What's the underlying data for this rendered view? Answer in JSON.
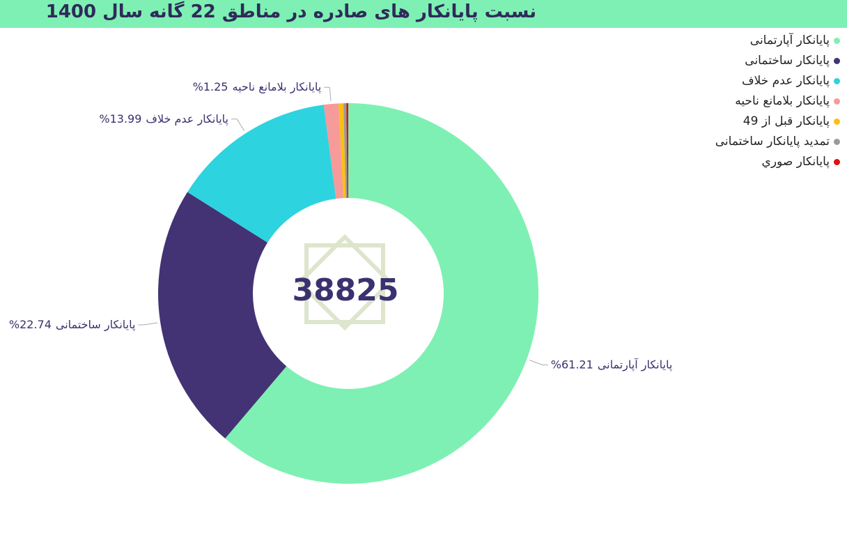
{
  "chart_data": {
    "type": "donut",
    "title": "نسبت پایانکار های صادره در مناطق 22 گانه سال 1400",
    "center_label": 38825,
    "categories": [
      "پایانکار آپارتمانی",
      "پایانکار ساختمانی",
      "پایانکار عدم خلاف",
      "پایانکار بلامانع ناحیه",
      "پایانکار قبل از 49",
      "تمدید پایانکار ساختمانی",
      "پایانکار صوري"
    ],
    "values": [
      61.21,
      22.74,
      13.99,
      1.25,
      0.4,
      0.25,
      0.16
    ],
    "value_labels": [
      "61.21%",
      "22.74%",
      "13.99%",
      "1.25%",
      null,
      null,
      null
    ],
    "colors": [
      "#7ef0b3",
      "#433374",
      "#2ed3e0",
      "#f79a9a",
      "#f9c012",
      "#9a9a9a",
      "#e01010"
    ],
    "legend": "top-right"
  }
}
